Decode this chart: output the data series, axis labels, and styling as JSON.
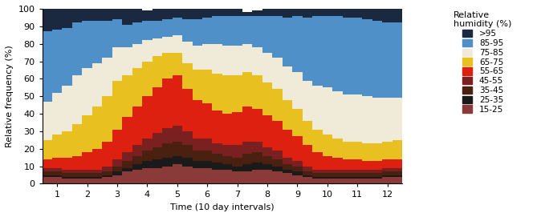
{
  "colors": {
    "15-25": "#8b3a3a",
    "25-35": "#1a1a1a",
    "35-45": "#4a2010",
    "45-55": "#7a2020",
    "55-65": "#dd2010",
    "65-75": "#e8c020",
    "75-85": "#f0ead8",
    "85-95": "#5090c8",
    "95+": "#1a2840"
  },
  "legend_labels": [
    ">95",
    "85-95",
    "75-85",
    "65-75",
    "55-65",
    "45-55",
    "35-45",
    "25-35",
    "15-25"
  ],
  "xlabel": "Time (10 day intervals)",
  "ylabel": "Relative frequency (%)",
  "legend_title": "Relative\nhumidity (%)",
  "ylim": [
    0,
    100
  ],
  "xlim": [
    0,
    36
  ],
  "xtick_positions": [
    1.5,
    4.5,
    7.5,
    10.5,
    13.5,
    16.5,
    19.5,
    22.5,
    25.5,
    28.5,
    31.5,
    34.5
  ],
  "xtick_labels": [
    "1",
    "2",
    "3",
    "4",
    "5",
    "6",
    "7",
    "8",
    "9",
    "10",
    "11",
    "12"
  ],
  "data": {
    "15-25": [
      4,
      4,
      3,
      3,
      3,
      3,
      4,
      5,
      7,
      8,
      9,
      9,
      10,
      11,
      10,
      9,
      9,
      8,
      8,
      7,
      7,
      8,
      8,
      7,
      6,
      5,
      4,
      3,
      3,
      3,
      3,
      3,
      3,
      3,
      4,
      4
    ],
    "25-35": [
      1,
      1,
      1,
      1,
      1,
      1,
      1,
      2,
      2,
      3,
      4,
      5,
      5,
      5,
      5,
      4,
      4,
      4,
      3,
      3,
      4,
      4,
      3,
      3,
      2,
      2,
      1,
      1,
      1,
      1,
      1,
      1,
      1,
      1,
      1,
      1
    ],
    "35-45": [
      2,
      2,
      2,
      2,
      2,
      2,
      2,
      3,
      4,
      5,
      6,
      7,
      8,
      8,
      7,
      6,
      6,
      5,
      5,
      5,
      6,
      6,
      5,
      4,
      3,
      3,
      2,
      2,
      2,
      2,
      2,
      2,
      2,
      2,
      2,
      2
    ],
    "45-55": [
      2,
      2,
      2,
      2,
      2,
      2,
      3,
      4,
      5,
      6,
      7,
      8,
      9,
      9,
      8,
      7,
      7,
      6,
      6,
      7,
      7,
      6,
      5,
      5,
      4,
      3,
      3,
      2,
      2,
      2,
      2,
      2,
      2,
      2,
      2,
      2
    ],
    "55-65": [
      5,
      6,
      7,
      8,
      10,
      12,
      14,
      17,
      20,
      22,
      24,
      26,
      28,
      29,
      24,
      22,
      20,
      19,
      18,
      19,
      20,
      19,
      18,
      17,
      16,
      14,
      12,
      10,
      8,
      7,
      6,
      6,
      5,
      5,
      5,
      5
    ],
    "65-75": [
      11,
      13,
      15,
      18,
      21,
      24,
      26,
      28,
      24,
      22,
      20,
      18,
      15,
      13,
      15,
      17,
      19,
      21,
      22,
      21,
      20,
      19,
      19,
      18,
      17,
      16,
      14,
      13,
      12,
      11,
      10,
      10,
      10,
      10,
      10,
      11
    ],
    "75-85": [
      22,
      24,
      26,
      28,
      27,
      25,
      22,
      19,
      16,
      14,
      12,
      10,
      9,
      10,
      12,
      14,
      15,
      17,
      17,
      17,
      16,
      16,
      17,
      18,
      19,
      21,
      23,
      25,
      27,
      27,
      27,
      27,
      27,
      26,
      25,
      24
    ],
    "85-95": [
      40,
      36,
      33,
      30,
      27,
      24,
      21,
      16,
      13,
      12,
      11,
      10,
      10,
      10,
      13,
      15,
      15,
      16,
      17,
      17,
      16,
      18,
      21,
      24,
      28,
      32,
      36,
      40,
      41,
      43,
      44,
      44,
      44,
      44,
      43,
      43
    ],
    "95+": [
      13,
      12,
      11,
      8,
      7,
      7,
      7,
      6,
      9,
      8,
      6,
      7,
      6,
      5,
      6,
      6,
      5,
      4,
      4,
      4,
      2,
      3,
      4,
      4,
      5,
      4,
      5,
      4,
      4,
      4,
      5,
      5,
      6,
      7,
      8,
      8
    ]
  }
}
